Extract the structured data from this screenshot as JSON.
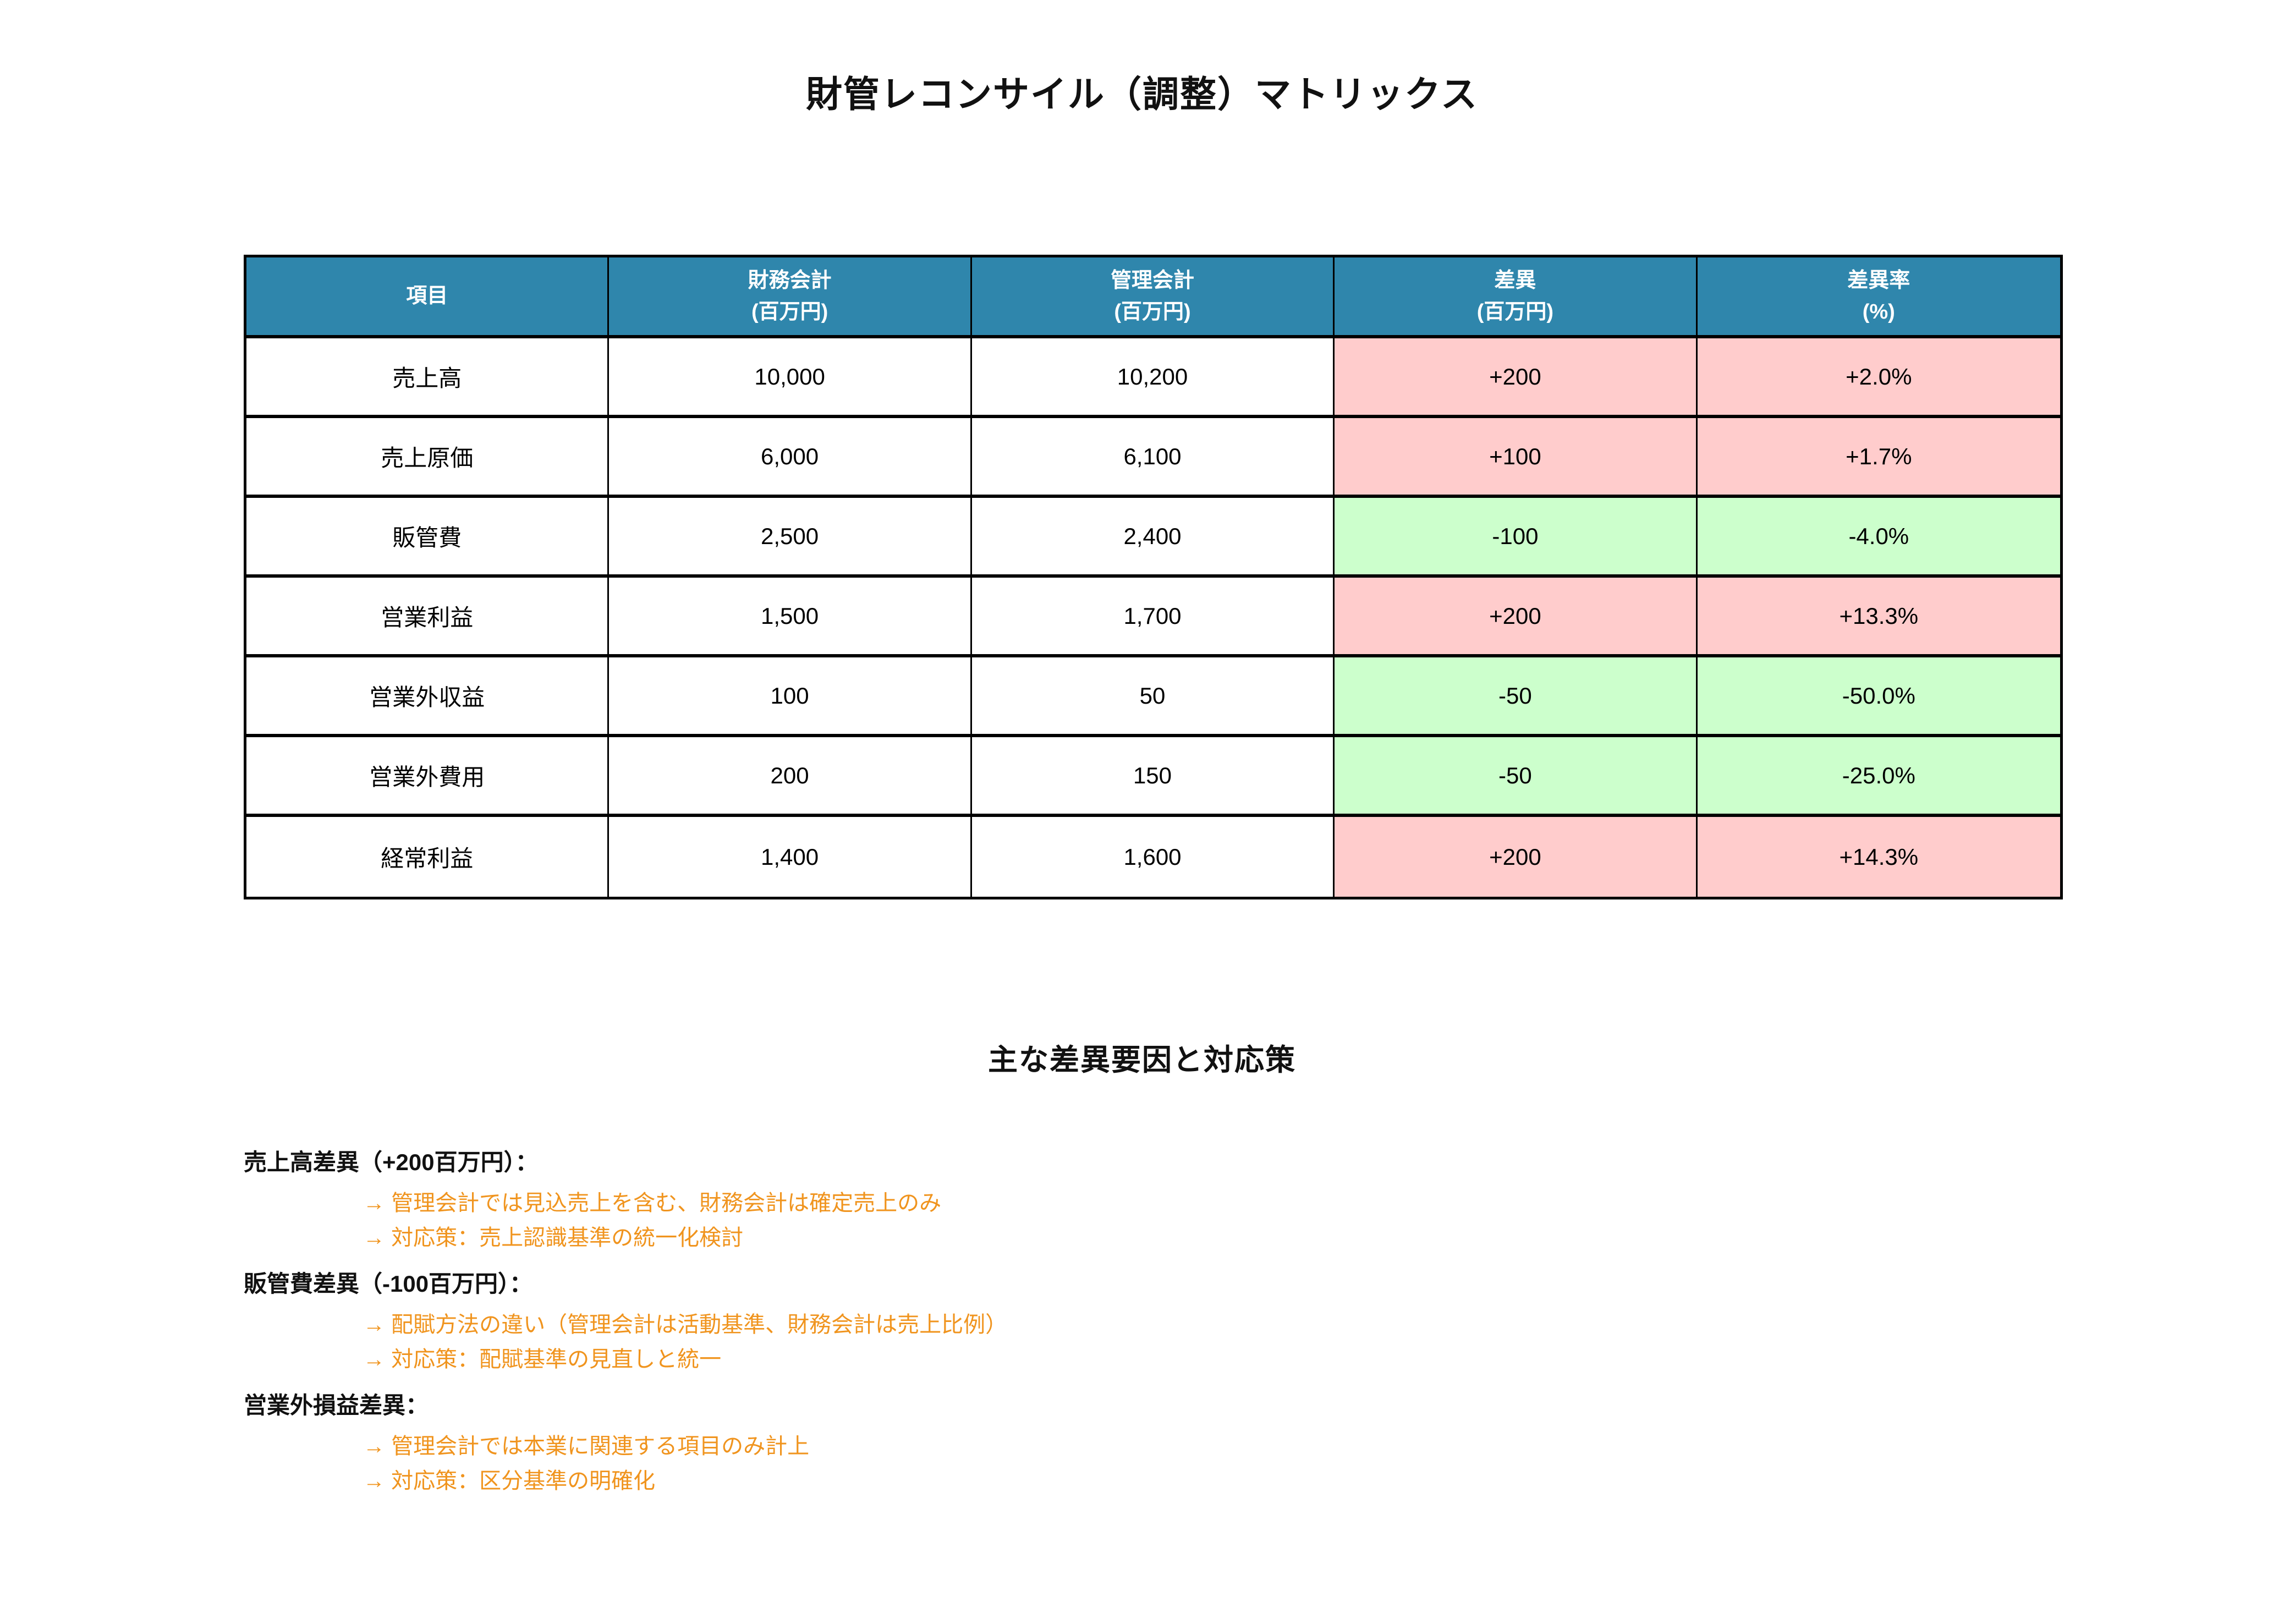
{
  "page": {
    "title": "財管レコンサイル（調整）マトリックス",
    "section_title": "主な差異要因と対応策"
  },
  "colors": {
    "header_bg": "#2F86AC",
    "header_text": "#FFFFFF",
    "increase_bg": "#FFCCCC",
    "decrease_bg": "#CCFFCC",
    "note_text": "#F0941E",
    "border": "#000000"
  },
  "table": {
    "columns": [
      {
        "label": "項目",
        "sub": ""
      },
      {
        "label": "財務会計",
        "sub": "(百万円)"
      },
      {
        "label": "管理会計",
        "sub": "(百万円)"
      },
      {
        "label": "差異",
        "sub": "(百万円)"
      },
      {
        "label": "差異率",
        "sub": "(%)"
      }
    ],
    "rows": [
      {
        "item": "売上高",
        "financial": "10,000",
        "management": "10,200",
        "diff": "+200",
        "rate": "+2.0%",
        "highlight": "pink"
      },
      {
        "item": "売上原価",
        "financial": "6,000",
        "management": "6,100",
        "diff": "+100",
        "rate": "+1.7%",
        "highlight": "pink"
      },
      {
        "item": "販管費",
        "financial": "2,500",
        "management": "2,400",
        "diff": "-100",
        "rate": "-4.0%",
        "highlight": "green"
      },
      {
        "item": "営業利益",
        "financial": "1,500",
        "management": "1,700",
        "diff": "+200",
        "rate": "+13.3%",
        "highlight": "pink"
      },
      {
        "item": "営業外収益",
        "financial": "100",
        "management": "50",
        "diff": "-50",
        "rate": "-50.0%",
        "highlight": "green"
      },
      {
        "item": "営業外費用",
        "financial": "200",
        "management": "150",
        "diff": "-50",
        "rate": "-25.0%",
        "highlight": "green"
      },
      {
        "item": "経常利益",
        "financial": "1,400",
        "management": "1,600",
        "diff": "+200",
        "rate": "+14.3%",
        "highlight": "pink"
      }
    ]
  },
  "notes": {
    "heading": "主な差異要因と対応策",
    "blocks": [
      {
        "header": "売上高差異（+200百万円）：",
        "lines": [
          "→ 管理会計では見込売上を含む、財務会計は確定売上のみ",
          "→ 対応策：売上認識基準の統一化検討"
        ]
      },
      {
        "header": "販管費差異（-100百万円）：",
        "lines": [
          "→ 配賦方法の違い（管理会計は活動基準、財務会計は売上比例）",
          "→ 対応策：配賦基準の見直しと統一"
        ]
      },
      {
        "header": "営業外損益差異：",
        "lines": [
          "→ 管理会計では本業に関連する項目のみ計上",
          "→ 対応策：区分基準の明確化"
        ]
      }
    ]
  },
  "chart_data": {
    "type": "table",
    "title": "財管レコンサイル（調整）マトリックス",
    "columns": [
      "項目",
      "財務会計(百万円)",
      "管理会計(百万円)",
      "差異(百万円)",
      "差異率(%)"
    ],
    "rows": [
      [
        "売上高",
        10000,
        10200,
        200,
        2.0
      ],
      [
        "売上原価",
        6000,
        6100,
        100,
        1.7
      ],
      [
        "販管費",
        2500,
        2400,
        -100,
        -4.0
      ],
      [
        "営業利益",
        1500,
        1700,
        200,
        13.3
      ],
      [
        "営業外収益",
        100,
        50,
        -50,
        -50.0
      ],
      [
        "営業外費用",
        200,
        150,
        -50,
        -25.0
      ],
      [
        "経常利益",
        1400,
        1600,
        200,
        14.3
      ]
    ],
    "legend": "差異セル背景: 増加=ピンク(#FFCCCC), 減少=グリーン(#CCFFCC)"
  }
}
